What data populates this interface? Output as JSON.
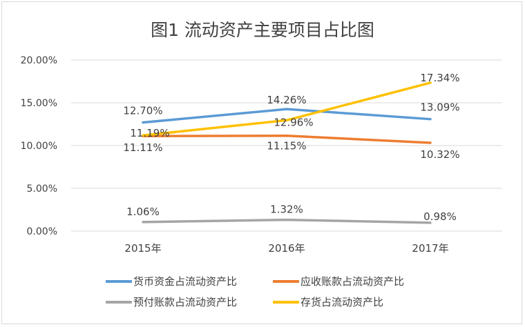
{
  "chart_data": {
    "type": "line",
    "title": "图1  流动资产主要项目占比图",
    "categories": [
      "2015年",
      "2016年",
      "2017年"
    ],
    "ylim": [
      0,
      20
    ],
    "yticks": [
      "0.00%",
      "5.00%",
      "10.00%",
      "15.00%",
      "20.00%"
    ],
    "grid": true,
    "legend_position": "bottom",
    "series": [
      {
        "name": "货币资金占流动资产比",
        "color": "#5b9bd5",
        "values": [
          12.7,
          14.26,
          13.09
        ],
        "labels": [
          "12.70%",
          "14.26%",
          "13.09%"
        ]
      },
      {
        "name": "应收账款占流动资产比",
        "color": "#ed7d31",
        "values": [
          11.11,
          11.15,
          10.32
        ],
        "labels": [
          "11.11%",
          "11.15%",
          "10.32%"
        ]
      },
      {
        "name": "预付账款占流动资产比",
        "color": "#a5a5a5",
        "values": [
          1.06,
          1.32,
          0.98
        ],
        "labels": [
          "1.06%",
          "1.32%",
          "0.98%"
        ]
      },
      {
        "name": "存货占流动资产比",
        "color": "#ffc000",
        "values": [
          11.19,
          12.96,
          17.34
        ],
        "labels": [
          "11.19%",
          "12.96%",
          "17.34%"
        ]
      }
    ]
  }
}
